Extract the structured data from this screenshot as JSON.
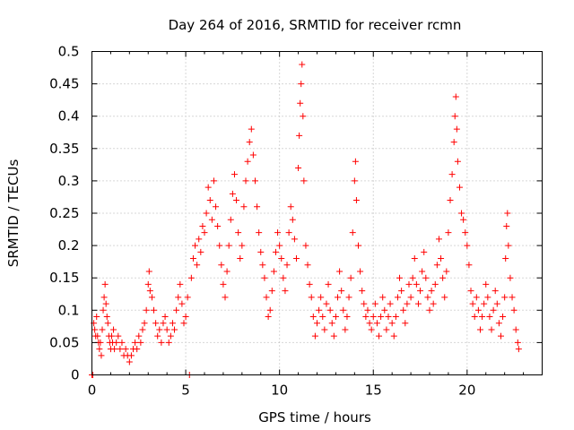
{
  "chart_data": {
    "type": "scatter",
    "title": "Day 264 of 2016, SRMTID for receiver rcmn",
    "xlabel": "GPS time / hours",
    "ylabel": "SRMTID / TECUs",
    "xlim": [
      0,
      24
    ],
    "ylim": [
      0,
      0.5
    ],
    "xticks": [
      0,
      5,
      10,
      15,
      20
    ],
    "yticks": [
      0,
      0.05,
      0.1,
      0.15,
      0.2,
      0.25,
      0.3,
      0.35,
      0.4,
      0.45,
      0.5
    ],
    "xtick_labels": [
      "0",
      "5",
      "10",
      "15",
      "20"
    ],
    "ytick_labels": [
      "0",
      "0.05",
      "0.1",
      "0.15",
      "0.2",
      "0.25",
      "0.3",
      "0.35",
      "0.4",
      "0.45",
      "0.5"
    ],
    "grid": true,
    "marker": "+",
    "color": "#ff0000",
    "series": [
      {
        "name": "SRMTID",
        "points": [
          [
            0.0,
            0.0
          ],
          [
            0.05,
            0.0
          ],
          [
            0.1,
            0.08
          ],
          [
            0.15,
            0.07
          ],
          [
            0.2,
            0.06
          ],
          [
            0.25,
            0.09
          ],
          [
            0.3,
            0.06
          ],
          [
            0.35,
            0.05
          ],
          [
            0.4,
            0.04
          ],
          [
            0.45,
            0.05
          ],
          [
            0.5,
            0.03
          ],
          [
            0.55,
            0.07
          ],
          [
            0.6,
            0.1
          ],
          [
            0.65,
            0.12
          ],
          [
            0.7,
            0.14
          ],
          [
            0.75,
            0.11
          ],
          [
            0.8,
            0.09
          ],
          [
            0.85,
            0.08
          ],
          [
            0.9,
            0.06
          ],
          [
            0.95,
            0.05
          ],
          [
            1.0,
            0.04
          ],
          [
            1.05,
            0.06
          ],
          [
            1.1,
            0.05
          ],
          [
            1.15,
            0.07
          ],
          [
            1.2,
            0.04
          ],
          [
            1.3,
            0.05
          ],
          [
            1.4,
            0.06
          ],
          [
            1.5,
            0.04
          ],
          [
            1.6,
            0.05
          ],
          [
            1.7,
            0.03
          ],
          [
            1.8,
            0.04
          ],
          [
            1.9,
            0.03
          ],
          [
            2.0,
            0.02
          ],
          [
            2.1,
            0.03
          ],
          [
            2.2,
            0.04
          ],
          [
            2.3,
            0.05
          ],
          [
            2.4,
            0.04
          ],
          [
            2.5,
            0.06
          ],
          [
            2.6,
            0.05
          ],
          [
            2.7,
            0.07
          ],
          [
            2.8,
            0.08
          ],
          [
            2.9,
            0.1
          ],
          [
            3.0,
            0.14
          ],
          [
            3.05,
            0.16
          ],
          [
            3.1,
            0.13
          ],
          [
            3.2,
            0.12
          ],
          [
            3.3,
            0.1
          ],
          [
            3.4,
            0.08
          ],
          [
            3.5,
            0.06
          ],
          [
            3.6,
            0.07
          ],
          [
            3.7,
            0.05
          ],
          [
            3.8,
            0.08
          ],
          [
            3.9,
            0.09
          ],
          [
            4.0,
            0.07
          ],
          [
            4.1,
            0.05
          ],
          [
            4.2,
            0.06
          ],
          [
            4.3,
            0.08
          ],
          [
            4.4,
            0.07
          ],
          [
            4.5,
            0.1
          ],
          [
            4.6,
            0.12
          ],
          [
            4.7,
            0.14
          ],
          [
            4.8,
            0.11
          ],
          [
            4.9,
            0.08
          ],
          [
            5.0,
            0.09
          ],
          [
            5.1,
            0.12
          ],
          [
            5.2,
            0.0
          ],
          [
            5.3,
            0.15
          ],
          [
            5.4,
            0.18
          ],
          [
            5.5,
            0.2
          ],
          [
            5.6,
            0.17
          ],
          [
            5.7,
            0.21
          ],
          [
            5.8,
            0.19
          ],
          [
            5.9,
            0.23
          ],
          [
            6.0,
            0.22
          ],
          [
            6.1,
            0.25
          ],
          [
            6.2,
            0.29
          ],
          [
            6.3,
            0.27
          ],
          [
            6.4,
            0.24
          ],
          [
            6.5,
            0.3
          ],
          [
            6.6,
            0.26
          ],
          [
            6.7,
            0.23
          ],
          [
            6.8,
            0.2
          ],
          [
            6.9,
            0.17
          ],
          [
            7.0,
            0.14
          ],
          [
            7.1,
            0.12
          ],
          [
            7.2,
            0.16
          ],
          [
            7.3,
            0.2
          ],
          [
            7.4,
            0.24
          ],
          [
            7.5,
            0.28
          ],
          [
            7.6,
            0.31
          ],
          [
            7.7,
            0.27
          ],
          [
            7.8,
            0.22
          ],
          [
            7.9,
            0.18
          ],
          [
            8.0,
            0.2
          ],
          [
            8.1,
            0.26
          ],
          [
            8.2,
            0.3
          ],
          [
            8.3,
            0.33
          ],
          [
            8.4,
            0.36
          ],
          [
            8.5,
            0.38
          ],
          [
            8.6,
            0.34
          ],
          [
            8.7,
            0.3
          ],
          [
            8.8,
            0.26
          ],
          [
            8.9,
            0.22
          ],
          [
            9.0,
            0.19
          ],
          [
            9.1,
            0.17
          ],
          [
            9.2,
            0.15
          ],
          [
            9.3,
            0.12
          ],
          [
            9.4,
            0.09
          ],
          [
            9.5,
            0.1
          ],
          [
            9.6,
            0.13
          ],
          [
            9.7,
            0.16
          ],
          [
            9.8,
            0.19
          ],
          [
            9.9,
            0.22
          ],
          [
            10.0,
            0.2
          ],
          [
            10.1,
            0.18
          ],
          [
            10.2,
            0.15
          ],
          [
            10.3,
            0.13
          ],
          [
            10.4,
            0.17
          ],
          [
            10.5,
            0.22
          ],
          [
            10.6,
            0.26
          ],
          [
            10.7,
            0.24
          ],
          [
            10.8,
            0.21
          ],
          [
            10.9,
            0.18
          ],
          [
            11.0,
            0.32
          ],
          [
            11.05,
            0.37
          ],
          [
            11.1,
            0.42
          ],
          [
            11.15,
            0.45
          ],
          [
            11.2,
            0.48
          ],
          [
            11.25,
            0.4
          ],
          [
            11.3,
            0.3
          ],
          [
            11.4,
            0.2
          ],
          [
            11.5,
            0.17
          ],
          [
            11.6,
            0.14
          ],
          [
            11.7,
            0.12
          ],
          [
            11.8,
            0.09
          ],
          [
            11.9,
            0.06
          ],
          [
            12.0,
            0.08
          ],
          [
            12.1,
            0.1
          ],
          [
            12.2,
            0.12
          ],
          [
            12.3,
            0.09
          ],
          [
            12.4,
            0.07
          ],
          [
            12.5,
            0.11
          ],
          [
            12.6,
            0.14
          ],
          [
            12.7,
            0.1
          ],
          [
            12.8,
            0.08
          ],
          [
            12.9,
            0.06
          ],
          [
            13.0,
            0.09
          ],
          [
            13.1,
            0.12
          ],
          [
            13.2,
            0.16
          ],
          [
            13.3,
            0.13
          ],
          [
            13.4,
            0.1
          ],
          [
            13.5,
            0.07
          ],
          [
            13.6,
            0.09
          ],
          [
            13.7,
            0.12
          ],
          [
            13.8,
            0.15
          ],
          [
            13.9,
            0.22
          ],
          [
            14.0,
            0.3
          ],
          [
            14.05,
            0.33
          ],
          [
            14.1,
            0.27
          ],
          [
            14.2,
            0.2
          ],
          [
            14.3,
            0.16
          ],
          [
            14.4,
            0.13
          ],
          [
            14.5,
            0.11
          ],
          [
            14.6,
            0.09
          ],
          [
            14.7,
            0.1
          ],
          [
            14.8,
            0.08
          ],
          [
            14.9,
            0.07
          ],
          [
            15.0,
            0.09
          ],
          [
            15.1,
            0.11
          ],
          [
            15.2,
            0.08
          ],
          [
            15.3,
            0.06
          ],
          [
            15.4,
            0.09
          ],
          [
            15.5,
            0.12
          ],
          [
            15.6,
            0.1
          ],
          [
            15.7,
            0.07
          ],
          [
            15.8,
            0.09
          ],
          [
            15.9,
            0.11
          ],
          [
            16.0,
            0.08
          ],
          [
            16.1,
            0.06
          ],
          [
            16.2,
            0.09
          ],
          [
            16.3,
            0.12
          ],
          [
            16.4,
            0.15
          ],
          [
            16.5,
            0.13
          ],
          [
            16.6,
            0.1
          ],
          [
            16.7,
            0.08
          ],
          [
            16.8,
            0.11
          ],
          [
            16.9,
            0.14
          ],
          [
            17.0,
            0.12
          ],
          [
            17.1,
            0.15
          ],
          [
            17.2,
            0.18
          ],
          [
            17.3,
            0.14
          ],
          [
            17.4,
            0.11
          ],
          [
            17.5,
            0.13
          ],
          [
            17.6,
            0.16
          ],
          [
            17.7,
            0.19
          ],
          [
            17.8,
            0.15
          ],
          [
            17.9,
            0.12
          ],
          [
            18.0,
            0.1
          ],
          [
            18.1,
            0.13
          ],
          [
            18.2,
            0.11
          ],
          [
            18.3,
            0.14
          ],
          [
            18.4,
            0.17
          ],
          [
            18.5,
            0.21
          ],
          [
            18.6,
            0.18
          ],
          [
            18.7,
            0.15
          ],
          [
            18.8,
            0.12
          ],
          [
            18.9,
            0.16
          ],
          [
            19.0,
            0.22
          ],
          [
            19.1,
            0.27
          ],
          [
            19.2,
            0.31
          ],
          [
            19.3,
            0.36
          ],
          [
            19.35,
            0.4
          ],
          [
            19.4,
            0.43
          ],
          [
            19.45,
            0.38
          ],
          [
            19.5,
            0.33
          ],
          [
            19.6,
            0.29
          ],
          [
            19.7,
            0.25
          ],
          [
            19.8,
            0.24
          ],
          [
            19.9,
            0.22
          ],
          [
            20.0,
            0.2
          ],
          [
            20.1,
            0.17
          ],
          [
            20.2,
            0.13
          ],
          [
            20.3,
            0.11
          ],
          [
            20.4,
            0.09
          ],
          [
            20.5,
            0.12
          ],
          [
            20.6,
            0.1
          ],
          [
            20.7,
            0.07
          ],
          [
            20.8,
            0.09
          ],
          [
            20.9,
            0.11
          ],
          [
            21.0,
            0.14
          ],
          [
            21.1,
            0.12
          ],
          [
            21.2,
            0.09
          ],
          [
            21.3,
            0.07
          ],
          [
            21.4,
            0.1
          ],
          [
            21.5,
            0.13
          ],
          [
            21.6,
            0.11
          ],
          [
            21.7,
            0.08
          ],
          [
            21.8,
            0.06
          ],
          [
            21.9,
            0.09
          ],
          [
            22.0,
            0.12
          ],
          [
            22.05,
            0.18
          ],
          [
            22.1,
            0.23
          ],
          [
            22.15,
            0.25
          ],
          [
            22.2,
            0.2
          ],
          [
            22.3,
            0.15
          ],
          [
            22.4,
            0.12
          ],
          [
            22.5,
            0.1
          ],
          [
            22.6,
            0.07
          ],
          [
            22.7,
            0.05
          ],
          [
            22.75,
            0.04
          ]
        ]
      }
    ]
  }
}
